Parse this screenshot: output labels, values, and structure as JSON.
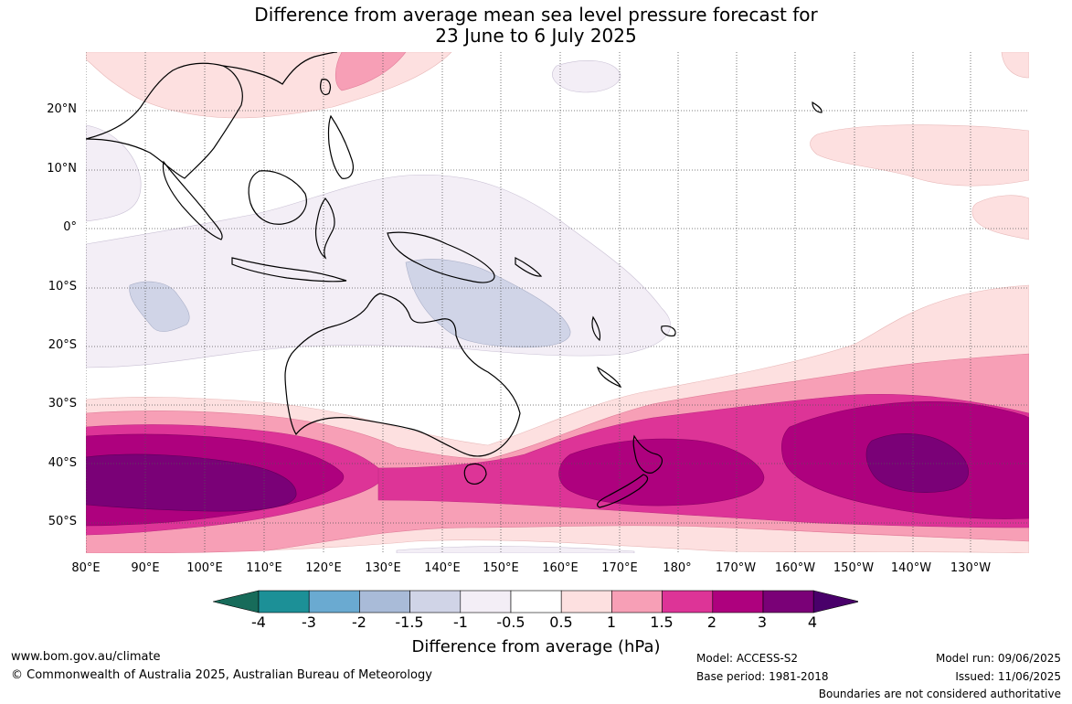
{
  "title": {
    "line1": "Difference from average mean sea level pressure forecast for",
    "line2": "23 June to 6 July 2025"
  },
  "lat_labels": [
    "20°N",
    "10°N",
    "0°",
    "10°S",
    "20°S",
    "30°S",
    "40°S",
    "50°S"
  ],
  "lon_labels": [
    "80°E",
    "90°E",
    "100°E",
    "110°E",
    "120°E",
    "130°E",
    "140°E",
    "150°E",
    "160°E",
    "170°E",
    "180°",
    "170°W",
    "160°W",
    "150°W",
    "140°W",
    "130°W"
  ],
  "legend": {
    "title": "Difference from average (hPa)",
    "ticks": [
      "-4",
      "-3",
      "-2",
      "-1.5",
      "-1",
      "-0.5",
      "0.5",
      "1",
      "1.5",
      "2",
      "3",
      "4"
    ],
    "colors": [
      "#176b5a",
      "#1c9097",
      "#6aaad1",
      "#a9bbd8",
      "#d0d4e7",
      "#f3eef6",
      "#ffffff",
      "#fde0e0",
      "#f79fb6",
      "#dd3497",
      "#ae017e",
      "#7a0177",
      "#49006a"
    ]
  },
  "footer": {
    "website": "www.bom.gov.au/climate",
    "copyright": "© Commonwealth of Australia 2025, Australian Bureau of Meteorology",
    "model": "Model: ACCESS-S2",
    "base_period": "Base period: 1981-2018",
    "model_run": "Model run: 09/06/2025",
    "issued": "Issued: 11/06/2025",
    "disclaimer": "Boundaries are not considered authoritative"
  }
}
